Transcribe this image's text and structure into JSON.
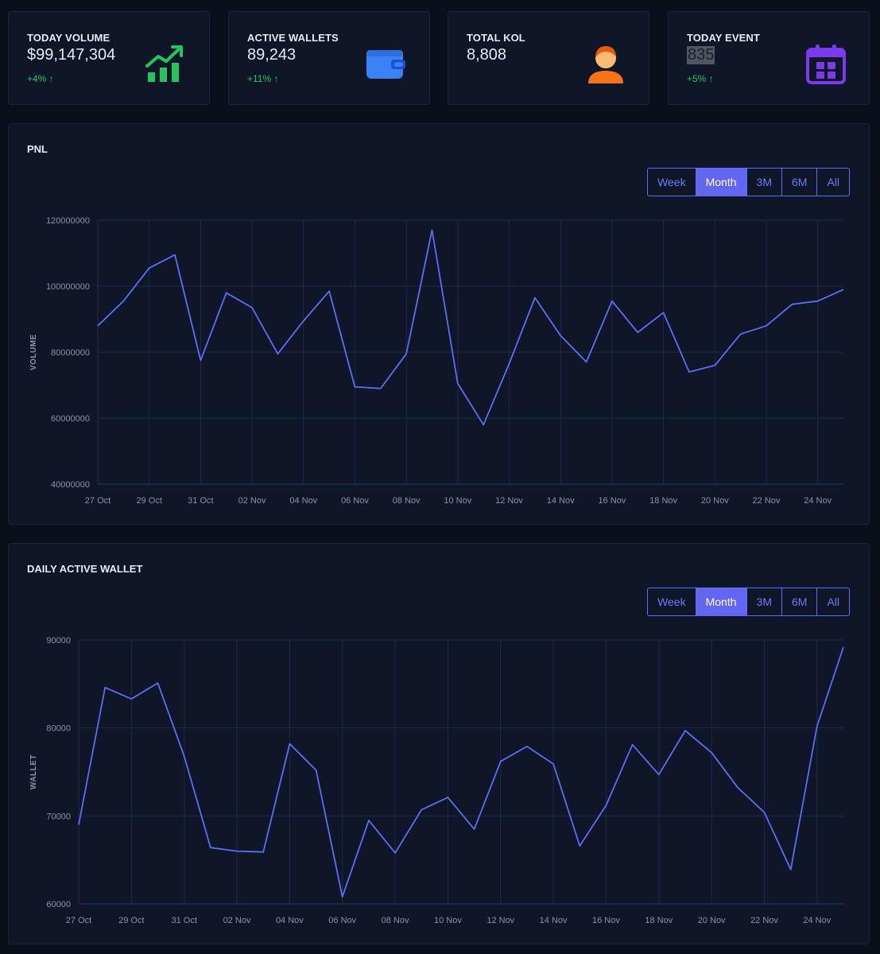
{
  "stats": [
    {
      "label": "TODAY VOLUME",
      "value": "$99,147,304",
      "change": "+4% ↑",
      "icon": "chart-growth-icon",
      "icon_color": "#22c55e",
      "highlight": false
    },
    {
      "label": "ACTIVE WALLETS",
      "value": "89,243",
      "change": "+11% ↑",
      "icon": "wallet-icon",
      "icon_color": "#3b82f6",
      "highlight": false
    },
    {
      "label": "TOTAL KOL",
      "value": "8,808",
      "change": "",
      "icon": "user-icon",
      "icon_color": "#f97316",
      "highlight": false
    },
    {
      "label": "TODAY EVENT",
      "value": "835",
      "change": "+5% ↑",
      "icon": "calendar-icon",
      "icon_color": "#7c3aed",
      "highlight": true
    }
  ],
  "range_options": [
    "Week",
    "Month",
    "3M",
    "6M",
    "All"
  ],
  "selected_range": "Month",
  "pnl": {
    "title": "PNL",
    "chart_data": {
      "type": "line",
      "ylabel": "VOLUME",
      "ylim": [
        40000000,
        120000000
      ],
      "yticks": [
        40000000,
        60000000,
        80000000,
        100000000,
        120000000
      ],
      "x_tick_labels": [
        "27 Oct",
        "29 Oct",
        "31 Oct",
        "02 Nov",
        "04 Nov",
        "06 Nov",
        "08 Nov",
        "10 Nov",
        "12 Nov",
        "14 Nov",
        "16 Nov",
        "18 Nov",
        "20 Nov",
        "22 Nov",
        "24 Nov"
      ],
      "x": [
        "27 Oct",
        "28 Oct",
        "29 Oct",
        "30 Oct",
        "31 Oct",
        "01 Nov",
        "02 Nov",
        "03 Nov",
        "04 Nov",
        "05 Nov",
        "06 Nov",
        "07 Nov",
        "08 Nov",
        "09 Nov",
        "10 Nov",
        "11 Nov",
        "12 Nov",
        "13 Nov",
        "14 Nov",
        "15 Nov",
        "16 Nov",
        "17 Nov",
        "18 Nov",
        "19 Nov",
        "20 Nov",
        "21 Nov",
        "22 Nov",
        "23 Nov",
        "24 Nov",
        "25 Nov"
      ],
      "series": [
        {
          "values": [
            88000000,
            95500000,
            105500000,
            109500000,
            77500000,
            98000000,
            93500000,
            79500000,
            89500000,
            98500000,
            69500000,
            69000000,
            79500000,
            117000000,
            70500000,
            58000000,
            76500000,
            96500000,
            85000000,
            77000000,
            95500000,
            86000000,
            92000000,
            74000000,
            76000000,
            85500000,
            88000000,
            94500000,
            95500000,
            99000000
          ],
          "color": "#5c6ef8"
        }
      ]
    }
  },
  "daw": {
    "title": "DAILY ACTIVE WALLET",
    "chart_data": {
      "type": "line",
      "ylabel": "WALLET",
      "ylim": [
        60000,
        90000
      ],
      "yticks": [
        60000,
        70000,
        80000,
        90000
      ],
      "x_tick_labels": [
        "27 Oct",
        "29 Oct",
        "31 Oct",
        "02 Nov",
        "04 Nov",
        "06 Nov",
        "08 Nov",
        "10 Nov",
        "12 Nov",
        "14 Nov",
        "16 Nov",
        "18 Nov",
        "20 Nov",
        "22 Nov",
        "24 Nov"
      ],
      "x": [
        "27 Oct",
        "28 Oct",
        "29 Oct",
        "30 Oct",
        "31 Oct",
        "01 Nov",
        "02 Nov",
        "03 Nov",
        "04 Nov",
        "05 Nov",
        "06 Nov",
        "07 Nov",
        "08 Nov",
        "09 Nov",
        "10 Nov",
        "11 Nov",
        "12 Nov",
        "13 Nov",
        "14 Nov",
        "15 Nov",
        "16 Nov",
        "17 Nov",
        "18 Nov",
        "19 Nov",
        "20 Nov",
        "21 Nov",
        "22 Nov",
        "23 Nov",
        "24 Nov",
        "25 Nov"
      ],
      "series": [
        {
          "values": [
            69000,
            84600,
            83300,
            85100,
            76800,
            66400,
            66000,
            65900,
            78200,
            75200,
            60800,
            69500,
            65800,
            70700,
            72100,
            68500,
            76200,
            77900,
            75900,
            66600,
            71200,
            78100,
            74700,
            79700,
            77200,
            73200,
            70400,
            63900,
            80200,
            89200
          ],
          "color": "#5c6ef8"
        }
      ]
    }
  }
}
